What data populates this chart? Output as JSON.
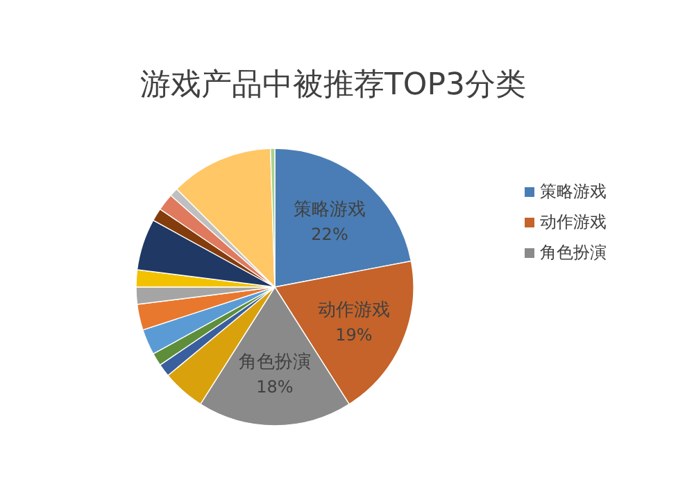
{
  "chart_data": {
    "type": "pie",
    "title": "游戏产品中被推荐TOP3分类",
    "categories": [
      "策略游戏",
      "动作游戏",
      "角色扮演",
      null,
      null,
      null,
      null,
      null,
      null,
      null,
      null,
      null,
      null,
      null,
      null,
      null
    ],
    "values": [
      22,
      19,
      18,
      5,
      1.5,
      1.5,
      3,
      3,
      2,
      2,
      6,
      1.5,
      2,
      1,
      12,
      0.5
    ],
    "value_labels": [
      "22%",
      "19%",
      "18%",
      null,
      null,
      null,
      null,
      null,
      null,
      null,
      null,
      null,
      null,
      null,
      null,
      null
    ],
    "colors": [
      "#4a7db5",
      "#c5632a",
      "#8a8a8a",
      "#d9a20c",
      "#3a5f9e",
      "#5e8e3a",
      "#5b9bd5",
      "#e8782e",
      "#a5a5a5",
      "#f2c200",
      "#1f3864",
      "#843c0c",
      "#e07a5f",
      "#bfbfbf",
      "#ffc766",
      "#a9d18e"
    ],
    "legend": "right"
  }
}
